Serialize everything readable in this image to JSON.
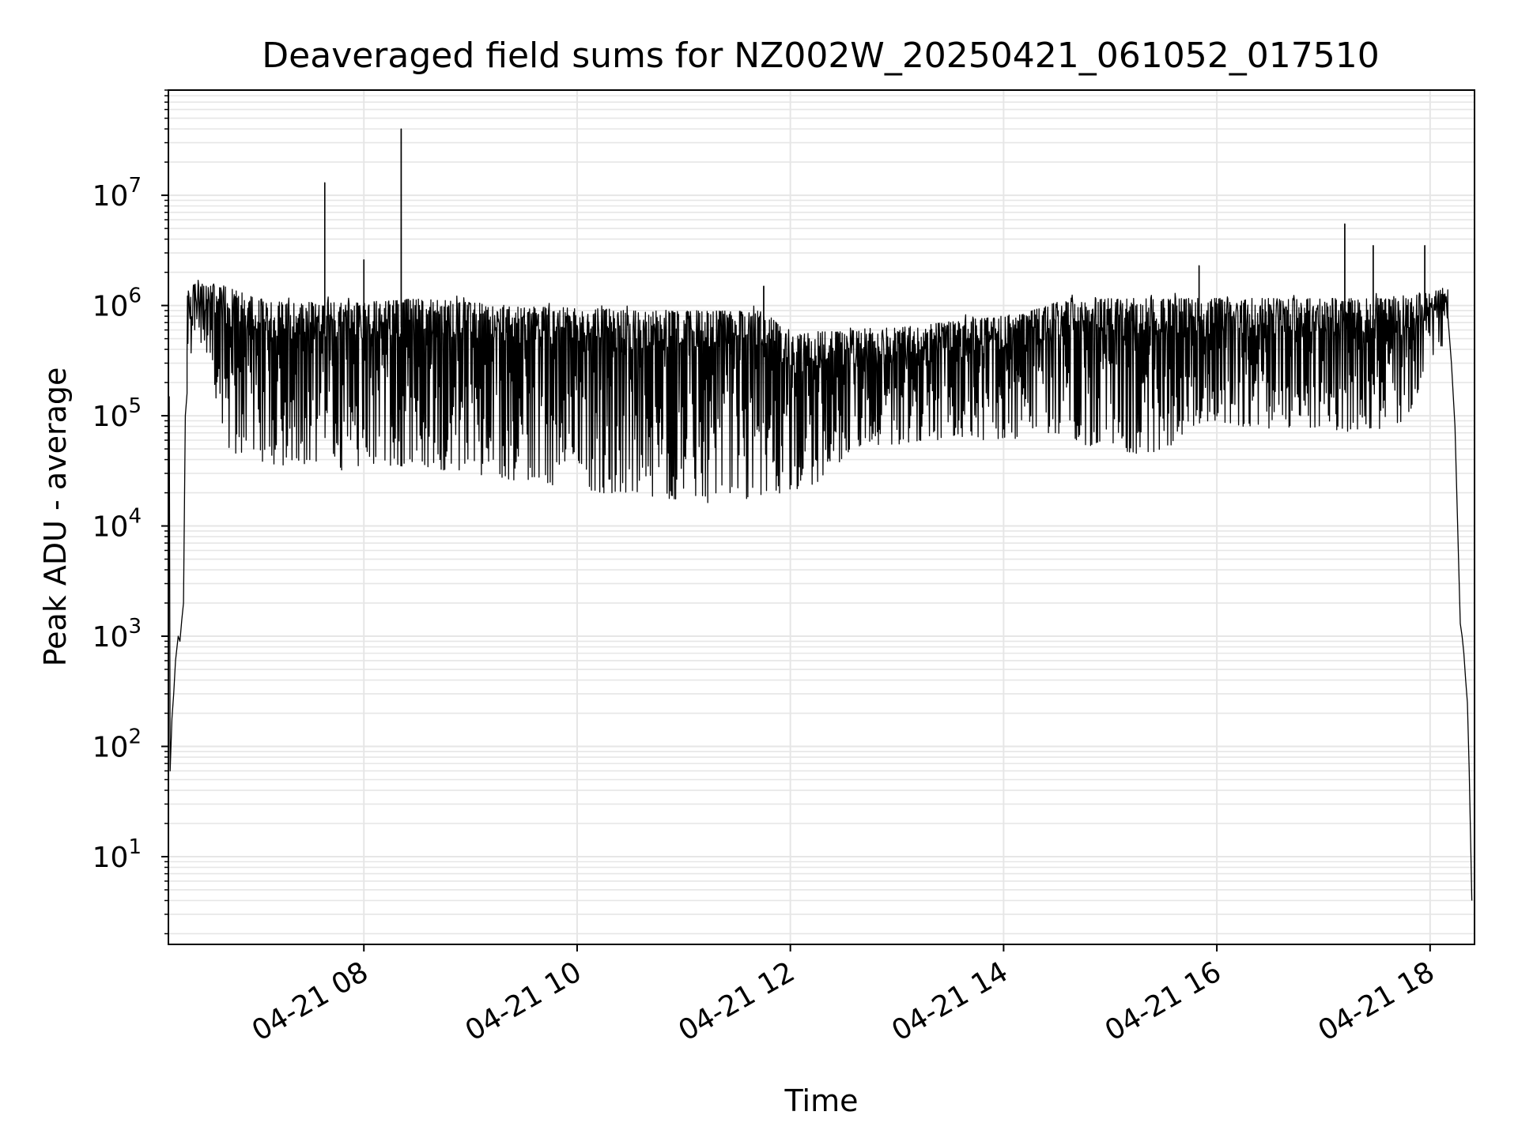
{
  "chart_data": {
    "type": "line",
    "title": "Deaveraged field sums for NZ002W_20250421_061052_017510",
    "xlabel": "Time",
    "ylabel": "Peak ADU - average",
    "xscale": "time",
    "yscale": "log",
    "xlim": [
      "04-21 06:10",
      "04-21 18:25"
    ],
    "ylim": [
      1.6,
      90000000
    ],
    "grid": true,
    "legend": "none",
    "line_color": "#000000",
    "grid_color": "#e6e6e6",
    "x_ticks": [
      {
        "t": "08:00",
        "label": "04-21 08"
      },
      {
        "t": "10:00",
        "label": "04-21 10"
      },
      {
        "t": "12:00",
        "label": "04-21 12"
      },
      {
        "t": "14:00",
        "label": "04-21 14"
      },
      {
        "t": "16:00",
        "label": "04-21 16"
      },
      {
        "t": "18:00",
        "label": "04-21 18"
      }
    ],
    "y_ticks": [
      {
        "value": 10,
        "base": "10",
        "exp": "1"
      },
      {
        "value": 100,
        "base": "10",
        "exp": "2"
      },
      {
        "value": 1000,
        "base": "10",
        "exp": "3"
      },
      {
        "value": 10000,
        "base": "10",
        "exp": "4"
      },
      {
        "value": 100000,
        "base": "10",
        "exp": "5"
      },
      {
        "value": 1000000,
        "base": "10",
        "exp": "6"
      },
      {
        "value": 10000000,
        "base": "10",
        "exp": "7"
      }
    ],
    "envelope": {
      "x": [
        "06:12",
        "06:20",
        "06:30",
        "06:40",
        "06:50",
        "07:00",
        "07:15",
        "07:30",
        "07:45",
        "08:00",
        "08:15",
        "08:30",
        "08:45",
        "09:00",
        "09:15",
        "09:30",
        "09:45",
        "10:00",
        "10:15",
        "10:30",
        "10:45",
        "11:00",
        "11:15",
        "11:30",
        "11:45",
        "12:00",
        "12:15",
        "12:30",
        "12:45",
        "13:00",
        "13:15",
        "13:30",
        "13:45",
        "14:00",
        "14:15",
        "14:30",
        "14:45",
        "15:00",
        "15:15",
        "15:30",
        "15:45",
        "16:00",
        "16:15",
        "16:30",
        "16:45",
        "17:00",
        "17:15",
        "17:30",
        "17:45",
        "18:00",
        "18:10"
      ],
      "high": [
        400000,
        1800000,
        1700000,
        1700000,
        1500000,
        1300000,
        1200000,
        1200000,
        1250000,
        1200000,
        1250000,
        1300000,
        1250000,
        1200000,
        1150000,
        1100000,
        1100000,
        1050000,
        1050000,
        1000000,
        1000000,
        1000000,
        1000000,
        1000000,
        1000000,
        600000,
        650000,
        650000,
        700000,
        700000,
        750000,
        800000,
        850000,
        900000,
        1000000,
        1200000,
        1300000,
        1300000,
        1300000,
        1300000,
        1300000,
        1300000,
        1300000,
        1300000,
        1300000,
        1300000,
        1300000,
        1300000,
        1300000,
        1500000,
        1700000
      ],
      "low": [
        150000,
        300000,
        500000,
        60000,
        40000,
        35000,
        35000,
        35000,
        30000,
        35000,
        35000,
        35000,
        32000,
        30000,
        28000,
        25000,
        23000,
        22000,
        20000,
        20000,
        18000,
        17000,
        16000,
        17000,
        19000,
        18000,
        25000,
        40000,
        50000,
        55000,
        60000,
        60000,
        60000,
        60000,
        65000,
        70000,
        55000,
        50000,
        45000,
        45000,
        80000,
        90000,
        80000,
        75000,
        80000,
        75000,
        70000,
        75000,
        80000,
        300000,
        500000
      ]
    },
    "edges": {
      "start": [
        [
          "06:10:30",
          150000
        ],
        [
          "06:11:00",
          60
        ],
        [
          "06:12:00",
          180
        ],
        [
          "06:13:00",
          300
        ],
        [
          "06:14:00",
          600
        ],
        [
          "06:15:30",
          1000
        ],
        [
          "06:16:30",
          900
        ],
        [
          "06:17:30",
          1400
        ],
        [
          "06:18:30",
          2000
        ],
        [
          "06:19:30",
          100000
        ],
        [
          "06:20:30",
          160000
        ]
      ],
      "end": [
        [
          "18:10:00",
          800000
        ],
        [
          "18:12:00",
          300000
        ],
        [
          "18:14:00",
          80000
        ],
        [
          "18:16:00",
          5000
        ],
        [
          "18:17:00",
          1300
        ],
        [
          "18:18:00",
          1000
        ],
        [
          "18:19:00",
          700
        ],
        [
          "18:20:00",
          400
        ],
        [
          "18:21:00",
          250
        ],
        [
          "18:22:00",
          60
        ],
        [
          "18:23:00",
          10
        ],
        [
          "18:23:30",
          4
        ]
      ]
    },
    "spikes": [
      {
        "t": "07:38",
        "value": 13000000
      },
      {
        "t": "08:00",
        "value": 2600000
      },
      {
        "t": "08:21",
        "value": 40000000
      },
      {
        "t": "11:45",
        "value": 1500000
      },
      {
        "t": "15:50",
        "value": 2300000
      },
      {
        "t": "17:12",
        "value": 5500000
      },
      {
        "t": "17:28",
        "value": 3500000
      },
      {
        "t": "17:57",
        "value": 3500000
      }
    ]
  }
}
